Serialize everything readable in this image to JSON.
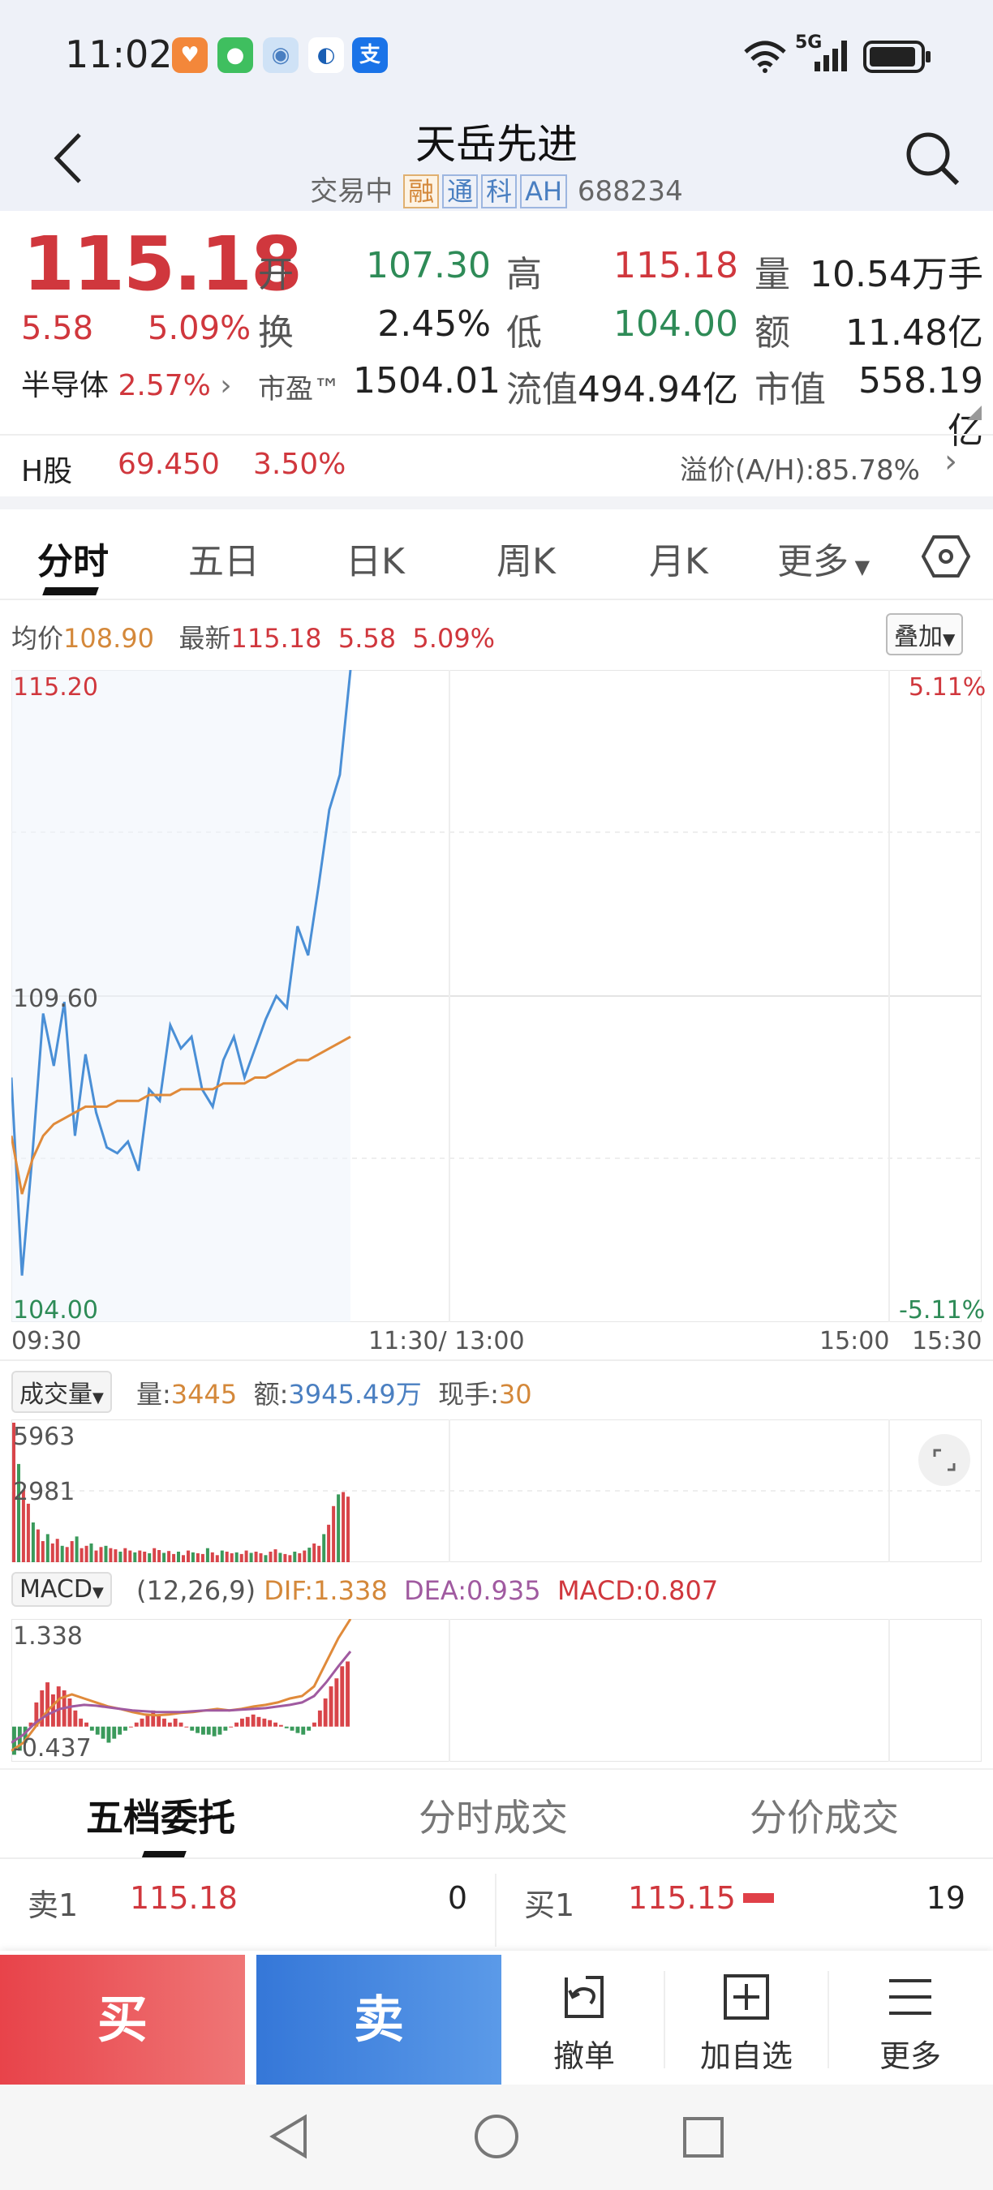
{
  "status": {
    "time": "11:02",
    "apps": [
      {
        "icon": "taobao-app-icon",
        "color": "#f3873a"
      },
      {
        "icon": "wechat-app-icon",
        "color": "#3fbf5f"
      },
      {
        "icon": "qq-app-icon",
        "color": "#cfe2f6"
      },
      {
        "icon": "sogou-app-icon",
        "color": "#ffffff"
      },
      {
        "icon": "alipay-app-icon",
        "color": "#1a73e8",
        "label": "支"
      }
    ],
    "network": "5G"
  },
  "header": {
    "title": "天岳先进",
    "status": "交易中",
    "tags": [
      "融",
      "通",
      "科",
      "AH"
    ],
    "code": "688234"
  },
  "quote": {
    "price": "115.18",
    "change": "5.58",
    "change_pct": "5.09%",
    "open_lbl": "开",
    "open": "107.30",
    "high_lbl": "高",
    "high": "115.18",
    "vol_lbl": "量",
    "vol": "10.54万手",
    "turnover_lbl": "换",
    "turnover": "2.45%",
    "low_lbl": "低",
    "low": "104.00",
    "amount_lbl": "额",
    "amount": "11.48亿",
    "sector": "半导体",
    "sector_pct": "2.57%",
    "pe_lbl": "市盈™",
    "pe": "1504.01",
    "float_lbl": "流值",
    "float": "494.94亿",
    "mcap_lbl": "市值",
    "mcap": "558.19亿"
  },
  "hshare": {
    "label": "H股",
    "price": "69.450",
    "pct": "3.50%",
    "premium": "溢价(A/H):85.78%"
  },
  "tabs": [
    "分时",
    "五日",
    "日K",
    "周K",
    "月K",
    "更多"
  ],
  "chart": {
    "avg_lbl": "均价",
    "avg": "108.90",
    "last_lbl": "最新",
    "last": "115.18",
    "last_chg": "5.58",
    "last_pct": "5.09%",
    "overlay_btn": "叠加",
    "y_top": "115.20",
    "y_mid": "109.60",
    "y_bottom": "104.00",
    "pct_top": "5.11%",
    "pct_bottom": "-5.11%",
    "x_labels": [
      "09:30",
      "11:30/ 13:00",
      "15:00",
      "15:30"
    ]
  },
  "chart_data": [
    {
      "type": "line",
      "title": "",
      "ylim": [
        104.0,
        115.2
      ],
      "series": [
        {
          "name": "最新",
          "color": "#4a8fd6",
          "values": [
            108.2,
            104.8,
            106.9,
            109.3,
            108.4,
            109.5,
            107.2,
            108.6,
            107.6,
            107.0,
            106.9,
            107.1,
            106.6,
            108.0,
            107.8,
            109.1,
            108.7,
            108.9,
            108.0,
            107.7,
            108.5,
            108.9,
            108.2,
            108.7,
            109.2,
            109.6,
            109.4,
            110.8,
            110.3,
            111.5,
            112.8,
            113.4,
            115.2
          ]
        },
        {
          "name": "均价",
          "color": "#e08a3a",
          "values": [
            107.2,
            106.2,
            106.8,
            107.2,
            107.4,
            107.5,
            107.6,
            107.7,
            107.7,
            107.7,
            107.8,
            107.8,
            107.8,
            107.9,
            107.9,
            107.9,
            108.0,
            108.0,
            108.0,
            108.0,
            108.1,
            108.1,
            108.1,
            108.2,
            108.2,
            108.3,
            108.4,
            108.5,
            108.5,
            108.6,
            108.7,
            108.8,
            108.9
          ]
        }
      ]
    },
    {
      "type": "bar",
      "title": "",
      "ymax": 5963,
      "values": [
        5963,
        4200,
        3100,
        2500,
        1700,
        1400,
        900,
        1200,
        800,
        1000,
        700,
        650,
        900,
        1100,
        600,
        700,
        800,
        500,
        650,
        700,
        600,
        550,
        450,
        600,
        500,
        420,
        500,
        450,
        380,
        600,
        520,
        400,
        480,
        350,
        450,
        300,
        500,
        420,
        380,
        350,
        600,
        420,
        300,
        500,
        450,
        380,
        420,
        350,
        500,
        400,
        450,
        380,
        300,
        450,
        550,
        400,
        350,
        300,
        450,
        380,
        500,
        620,
        800,
        700,
        1200,
        1600,
        2400,
        2900,
        3000,
        2800
      ]
    },
    {
      "type": "bar",
      "title": "",
      "ylim": [
        -0.437,
        1.338
      ],
      "values": [
        -0.35,
        -0.3,
        -0.2,
        0.05,
        0.3,
        0.45,
        0.55,
        0.4,
        0.5,
        0.45,
        0.35,
        0.2,
        0.1,
        0.05,
        -0.05,
        -0.1,
        -0.15,
        -0.2,
        -0.15,
        -0.1,
        -0.05,
        0.0,
        0.05,
        0.1,
        0.15,
        0.2,
        0.15,
        0.1,
        0.05,
        0.1,
        0.05,
        0.0,
        -0.05,
        -0.08,
        -0.1,
        -0.1,
        -0.12,
        -0.1,
        -0.05,
        0.0,
        0.05,
        0.1,
        0.12,
        0.15,
        0.12,
        0.1,
        0.08,
        0.05,
        0.02,
        -0.02,
        -0.05,
        -0.08,
        -0.1,
        -0.05,
        0.05,
        0.2,
        0.35,
        0.5,
        0.6,
        0.75,
        0.81
      ],
      "dif_values": [
        -0.3,
        -0.2,
        0.0,
        0.2,
        0.35,
        0.4,
        0.35,
        0.3,
        0.25,
        0.22,
        0.18,
        0.15,
        0.14,
        0.15,
        0.17,
        0.18,
        0.2,
        0.22,
        0.2,
        0.22,
        0.25,
        0.27,
        0.3,
        0.35,
        0.38,
        0.5,
        0.8,
        1.1,
        1.338
      ],
      "dea_values": [
        -0.2,
        -0.1,
        0.05,
        0.15,
        0.22,
        0.25,
        0.27,
        0.26,
        0.24,
        0.22,
        0.2,
        0.19,
        0.18,
        0.18,
        0.18,
        0.19,
        0.2,
        0.2,
        0.2,
        0.21,
        0.22,
        0.23,
        0.25,
        0.27,
        0.3,
        0.38,
        0.55,
        0.75,
        0.935
      ]
    }
  ],
  "volume": {
    "dropdown": "成交量",
    "vol_lbl": "量:",
    "vol": "3445",
    "amt_lbl": "额:",
    "amt": "3945.49万",
    "cur_lbl": "现手:",
    "cur": "30",
    "y_top": "5963",
    "y_mid": "2981"
  },
  "macd": {
    "dropdown": "MACD",
    "params": "(12,26,9)",
    "dif": "DIF:1.338",
    "dea": "DEA:0.935",
    "macd": "MACD:0.807",
    "y_top": "1.338",
    "y_bottom": "-0.437"
  },
  "orderbook": {
    "tabs": [
      "五档委托",
      "分时成交",
      "分价成交"
    ],
    "sell1_lbl": "卖1",
    "sell1_price": "115.18",
    "sell1_vol": "0",
    "buy1_lbl": "买1",
    "buy1_price": "115.15",
    "buy1_vol": "19"
  },
  "actions": {
    "buy": "买",
    "sell": "卖",
    "cancel": "撤单",
    "watch": "加自选",
    "more": "更多"
  }
}
